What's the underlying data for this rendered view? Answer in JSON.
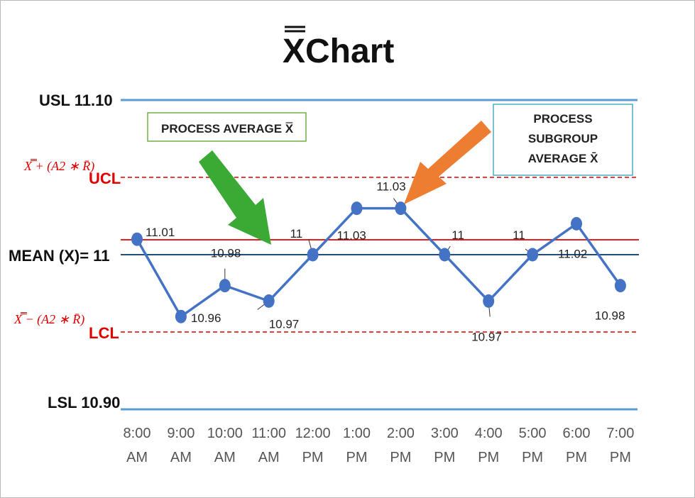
{
  "chart_data": {
    "type": "line",
    "title": "XChart",
    "categories": [
      [
        "8:00",
        "AM"
      ],
      [
        "9:00",
        "AM"
      ],
      [
        "10:00",
        "AM"
      ],
      [
        "11:00",
        "AM"
      ],
      [
        "12:00",
        "PM"
      ],
      [
        "1:00",
        "PM"
      ],
      [
        "2:00",
        "PM"
      ],
      [
        "3:00",
        "PM"
      ],
      [
        "4:00",
        "PM"
      ],
      [
        "5:00",
        "PM"
      ],
      [
        "6:00",
        "PM"
      ],
      [
        "7:00",
        "PM"
      ]
    ],
    "values": [
      11.01,
      10.96,
      10.98,
      10.97,
      11,
      11.03,
      11.03,
      11,
      10.97,
      11,
      11.02,
      10.98
    ],
    "data_labels": [
      "11.01",
      "10.96",
      "10.98",
      "10.97",
      "11",
      "11.03",
      "11.03",
      "11",
      "10.97",
      "11",
      "11.02",
      "10.98"
    ],
    "ylim": [
      10.9,
      11.1
    ],
    "series_color": "#4472c4",
    "lines": {
      "usl": {
        "label": "USL 11.10",
        "value": 11.1,
        "color": "#5b9bd5"
      },
      "ucl": {
        "label": "UCL",
        "formula": "X̿ + (A2 ∗ R̄)",
        "value": 11.05,
        "color": "#e00000"
      },
      "mean": {
        "label": "MEAN  (X)= 11",
        "value": 11.0,
        "color": "#1f4e79"
      },
      "process_avg": {
        "value": 11.001,
        "color": "#e00000"
      },
      "lcl": {
        "label": "LCL",
        "formula": "X̿ − (A2 ∗ R̄)",
        "value": 10.95,
        "color": "#e00000"
      },
      "lsl": {
        "label": "LSL 10.90",
        "value": 10.9,
        "color": "#5b9bd5"
      }
    },
    "callouts": {
      "process_average": "PROCESS AVERAGE X̿",
      "subgroup": [
        "PROCESS",
        "SUBGROUP",
        "AVERAGE X̄"
      ]
    },
    "arrow_colors": {
      "green": "#3aaa35",
      "orange": "#ed7d31"
    }
  }
}
